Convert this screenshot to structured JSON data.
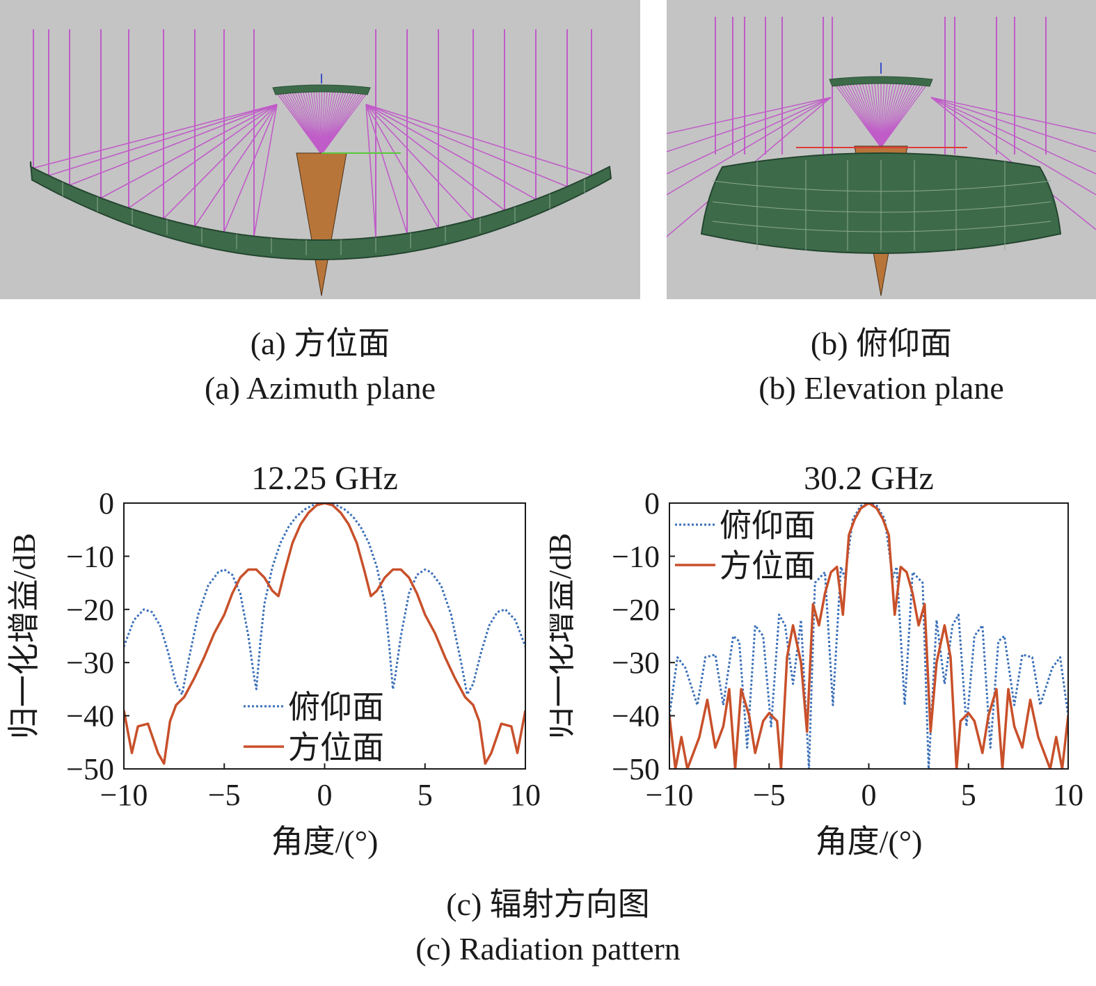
{
  "figure": {
    "panel_a_caption_cn": "(a) 方位面",
    "panel_a_caption_en": "(a) Azimuth plane",
    "panel_b_caption_cn": "(b) 俯仰面",
    "panel_b_caption_en": "(b) Elevation plane",
    "panel_c_caption_cn": "(c) 辐射方向图",
    "panel_c_caption_en": "(c) Radiation pattern"
  },
  "colors": {
    "reflector": "#3d6b4a",
    "feed": "#b8753a",
    "rays": "#c05cc8",
    "background": "#c4c4c4",
    "elevation_series": "#3a6fb8",
    "azimuth_series": "#c8502a"
  },
  "chart_data": [
    {
      "type": "line",
      "title": "12.25 GHz",
      "xlabel": "角度/(°)",
      "ylabel": "归一化增益/dB",
      "xlim": [
        -10,
        10
      ],
      "ylim": [
        -50,
        0
      ],
      "xticks": [
        -10,
        -5,
        0,
        5,
        10
      ],
      "yticks": [
        0,
        -10,
        -20,
        -30,
        -40,
        -50
      ],
      "xtick_labels": [
        "−10",
        "−5",
        "0",
        "5",
        "10"
      ],
      "ytick_labels": [
        "0",
        "−10",
        "−20",
        "−30",
        "−40",
        "−50"
      ],
      "legend": {
        "position": "bottom-center"
      },
      "series": [
        {
          "name": "俯仰面",
          "style": "dotted",
          "color": "#3a6fb8",
          "x": [
            -10,
            -9.5,
            -9,
            -8.6,
            -8.2,
            -7.8,
            -7.4,
            -7.1,
            -6.8,
            -6.3,
            -5.8,
            -5.3,
            -5.0,
            -4.6,
            -4.2,
            -3.8,
            -3.5,
            -3.4,
            -3.2,
            -3.0,
            -2.6,
            -2.2,
            -1.8,
            -1.4,
            -1.0,
            -0.6,
            -0.2,
            0,
            0.2,
            0.6,
            1.0,
            1.4,
            1.8,
            2.2,
            2.6,
            3.0,
            3.2,
            3.4,
            3.5,
            3.8,
            4.2,
            4.6,
            5.0,
            5.3,
            5.8,
            6.3,
            6.8,
            7.1,
            7.4,
            7.8,
            8.2,
            8.6,
            9.0,
            9.5,
            10
          ],
          "y": [
            -27,
            -22,
            -20,
            -20.5,
            -23,
            -28,
            -34,
            -36,
            -30,
            -21,
            -15.5,
            -13,
            -12.5,
            -13.5,
            -17,
            -25,
            -33,
            -35,
            -26,
            -19,
            -12,
            -7.5,
            -4.5,
            -2.5,
            -1.2,
            -0.4,
            -0.05,
            0,
            -0.05,
            -0.4,
            -1.2,
            -2.5,
            -4.5,
            -7.5,
            -12,
            -19,
            -26,
            -35,
            -33,
            -25,
            -17,
            -13.5,
            -12.5,
            -13,
            -15.5,
            -21,
            -30,
            -36,
            -34,
            -28,
            -23,
            -20.5,
            -20,
            -22,
            -27
          ]
        },
        {
          "name": "方位面",
          "style": "solid",
          "color": "#c8502a",
          "x": [
            -10,
            -9.6,
            -9.3,
            -8.8,
            -8.3,
            -8.0,
            -7.7,
            -7.4,
            -7.0,
            -6.5,
            -6.0,
            -5.5,
            -5.0,
            -4.6,
            -4.2,
            -3.8,
            -3.4,
            -3.0,
            -2.6,
            -2.3,
            -2.0,
            -1.6,
            -1.2,
            -0.8,
            -0.4,
            0,
            0.4,
            0.8,
            1.2,
            1.6,
            2.0,
            2.3,
            2.6,
            3.0,
            3.4,
            3.8,
            4.2,
            4.6,
            5.0,
            5.5,
            6.0,
            6.5,
            7.0,
            7.4,
            7.7,
            8.0,
            8.3,
            8.8,
            9.3,
            9.6,
            10
          ],
          "y": [
            -39,
            -47,
            -42,
            -41.5,
            -47,
            -49,
            -41,
            -38,
            -36.5,
            -33,
            -29,
            -24.5,
            -21,
            -17,
            -14,
            -12.5,
            -12.5,
            -14,
            -16.5,
            -17.5,
            -13,
            -7.5,
            -4,
            -1.8,
            -0.4,
            0,
            -0.4,
            -1.8,
            -4,
            -7.5,
            -13,
            -17.5,
            -16.5,
            -14,
            -12.5,
            -12.5,
            -14,
            -17,
            -21,
            -24.5,
            -29,
            -33,
            -36.5,
            -38,
            -41,
            -49,
            -47,
            -41.5,
            -42,
            -47,
            -39
          ]
        }
      ]
    },
    {
      "type": "line",
      "title": "30.2 GHz",
      "xlabel": "角度/(°)",
      "ylabel": "归一化增益/dB",
      "xlim": [
        -10,
        10
      ],
      "ylim": [
        -50,
        0
      ],
      "xticks": [
        -10,
        -5,
        0,
        5,
        10
      ],
      "yticks": [
        0,
        -10,
        -20,
        -30,
        -40,
        -50
      ],
      "xtick_labels": [
        "−10",
        "−5",
        "0",
        "5",
        "10"
      ],
      "ytick_labels": [
        "0",
        "−10",
        "−20",
        "−30",
        "−40",
        "−50"
      ],
      "legend": {
        "position": "top-left"
      },
      "series": [
        {
          "name": "俯仰面",
          "style": "dotted",
          "color": "#3a6fb8",
          "x": [
            -10,
            -9.6,
            -9.2,
            -8.6,
            -8.2,
            -7.7,
            -7.3,
            -6.8,
            -6.5,
            -6.1,
            -5.7,
            -5.3,
            -4.9,
            -4.5,
            -4.2,
            -3.8,
            -3.4,
            -3.0,
            -2.7,
            -2.2,
            -1.8,
            -1.4,
            -1.2,
            -0.8,
            -0.4,
            0,
            0.4,
            0.8,
            1.2,
            1.4,
            1.8,
            2.2,
            2.7,
            3.0,
            3.4,
            3.8,
            4.2,
            4.5,
            4.9,
            5.3,
            5.7,
            6.1,
            6.5,
            6.8,
            7.3,
            7.7,
            8.2,
            8.6,
            9.2,
            9.6,
            10
          ],
          "y": [
            -40,
            -29,
            -31,
            -38,
            -29,
            -28.5,
            -38,
            -25,
            -26,
            -46,
            -23,
            -25,
            -42,
            -21,
            -23,
            -34,
            -22,
            -50,
            -15,
            -13,
            -38,
            -12,
            -14,
            -3,
            -0.5,
            0,
            -0.5,
            -3,
            -14,
            -12,
            -38,
            -13,
            -15,
            -50,
            -22,
            -34,
            -23,
            -21,
            -42,
            -25,
            -23,
            -46,
            -26,
            -25,
            -38,
            -28.5,
            -29,
            -38,
            -31,
            -29,
            -40
          ]
        },
        {
          "name": "方位面",
          "style": "solid",
          "color": "#c8502a",
          "x": [
            -10,
            -9.7,
            -9.4,
            -9.1,
            -8.8,
            -8.5,
            -8.1,
            -7.7,
            -7.3,
            -7.0,
            -6.7,
            -6.4,
            -6.0,
            -5.7,
            -5.3,
            -5.0,
            -4.6,
            -4.4,
            -4.1,
            -3.8,
            -3.4,
            -3.1,
            -2.8,
            -2.5,
            -2.2,
            -1.9,
            -1.6,
            -1.3,
            -1.0,
            -0.7,
            -0.4,
            0,
            0.4,
            0.7,
            1.0,
            1.3,
            1.6,
            1.9,
            2.2,
            2.5,
            2.8,
            3.1,
            3.4,
            3.8,
            4.1,
            4.4,
            4.6,
            5.0,
            5.3,
            5.7,
            6.0,
            6.4,
            6.7,
            7.0,
            7.3,
            7.7,
            8.1,
            8.5,
            8.8,
            9.1,
            9.4,
            9.7,
            10
          ],
          "y": [
            -40,
            -50,
            -44,
            -50,
            -47,
            -44,
            -37,
            -46,
            -42,
            -35,
            -50,
            -35,
            -40,
            -47,
            -41,
            -39.5,
            -41,
            -50,
            -29,
            -23,
            -30,
            -43,
            -19,
            -23,
            -17,
            -13,
            -12,
            -21,
            -6,
            -3,
            -1,
            0,
            -1,
            -3,
            -6,
            -21,
            -12,
            -13,
            -17,
            -23,
            -19,
            -43,
            -30,
            -23,
            -29,
            -50,
            -41,
            -39.5,
            -41,
            -47,
            -40,
            -35,
            -50,
            -35,
            -42,
            -46,
            -37,
            -44,
            -47,
            -50,
            -44,
            -50,
            -40
          ]
        }
      ]
    }
  ]
}
